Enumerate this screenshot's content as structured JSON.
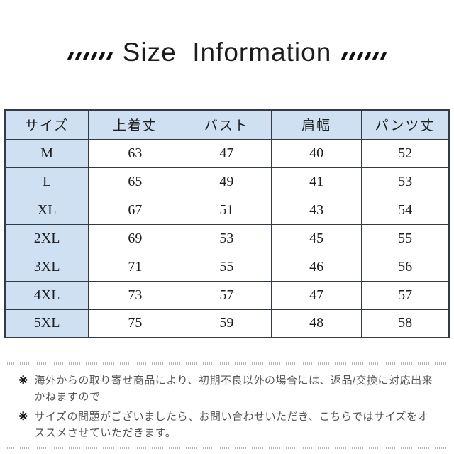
{
  "title": {
    "text": "Size  Information",
    "decoration": "slanted-dots-x6"
  },
  "table": {
    "headers": [
      "サイズ",
      "上着丈",
      "バスト",
      "肩幅",
      "パンツ丈"
    ],
    "rows": [
      {
        "size": "M",
        "values": [
          "63",
          "47",
          "40",
          "52"
        ]
      },
      {
        "size": "L",
        "values": [
          "65",
          "49",
          "41",
          "53"
        ]
      },
      {
        "size": "XL",
        "values": [
          "67",
          "51",
          "43",
          "54"
        ]
      },
      {
        "size": "2XL",
        "values": [
          "69",
          "53",
          "45",
          "55"
        ]
      },
      {
        "size": "3XL",
        "values": [
          "71",
          "55",
          "46",
          "56"
        ]
      },
      {
        "size": "4XL",
        "values": [
          "73",
          "57",
          "47",
          "57"
        ]
      },
      {
        "size": "5XL",
        "values": [
          "75",
          "59",
          "48",
          "58"
        ]
      }
    ]
  },
  "notes": {
    "marker": "※",
    "items": [
      "海外からの取り寄せ商品により、初期不良以外の場合には、返品/交換に対応出来かねますので",
      "サイズの問題がございましたら、お問い合わせいただき、こちらではサイズをオススメさせていただきます。"
    ]
  },
  "colors": {
    "header_bg": "#cfe0f2",
    "border": "#333b47",
    "note_text": "#555555",
    "ink": "#111111"
  }
}
